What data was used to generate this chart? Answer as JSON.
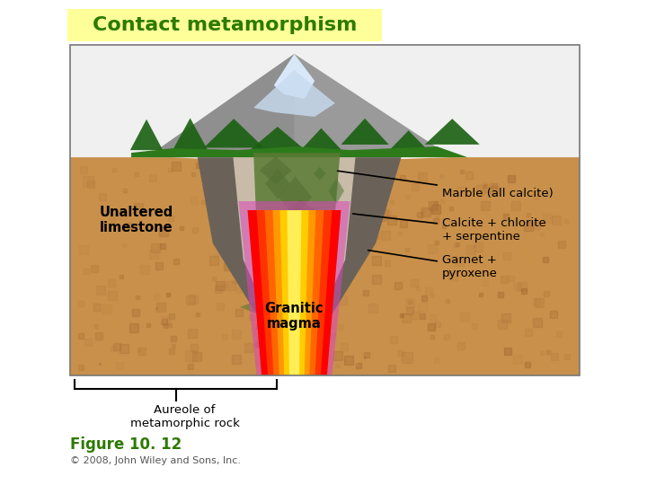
{
  "title": "Contact metamorphism",
  "title_bg_color": "#FFFF99",
  "title_text_color": "#2D7A00",
  "title_fontsize": 16,
  "figure_caption": "Figure 10. 12",
  "caption_color": "#2D7A00",
  "caption_fontsize": 12,
  "copyright": "© 2008, John Wiley and Sons, Inc.",
  "copyright_fontsize": 8,
  "copyright_color": "#555555",
  "bg_color": "#FFFFFF",
  "diagram_border_color": "#888888",
  "ground_color": "#C8904A",
  "sky_color": "#FFFFFF",
  "mountain_color": "#A0A0A0",
  "snow_color": "#DDEEFF",
  "green_veg_color": "#2A6B10",
  "dark_aureole_color": "#787068",
  "white_marble_color": "#D0C8B0",
  "green_zone_color": "#5A7A35",
  "magma_colors": [
    "#FF0000",
    "#FF4400",
    "#FF8800",
    "#FFCC00",
    "#FFEE44"
  ],
  "pink_color": "#CC44AA",
  "label_unaltered": "Unaltered\nlimestone",
  "label_marble": "Marble (all calcite)",
  "label_calcite": "Calcite + chlorite\n+ serpentine",
  "label_garnet": "Garnet +\npyroxene",
  "label_magma": "Granitic\nmagma",
  "label_aureole": "Aureole of\nmetamorphic rock"
}
